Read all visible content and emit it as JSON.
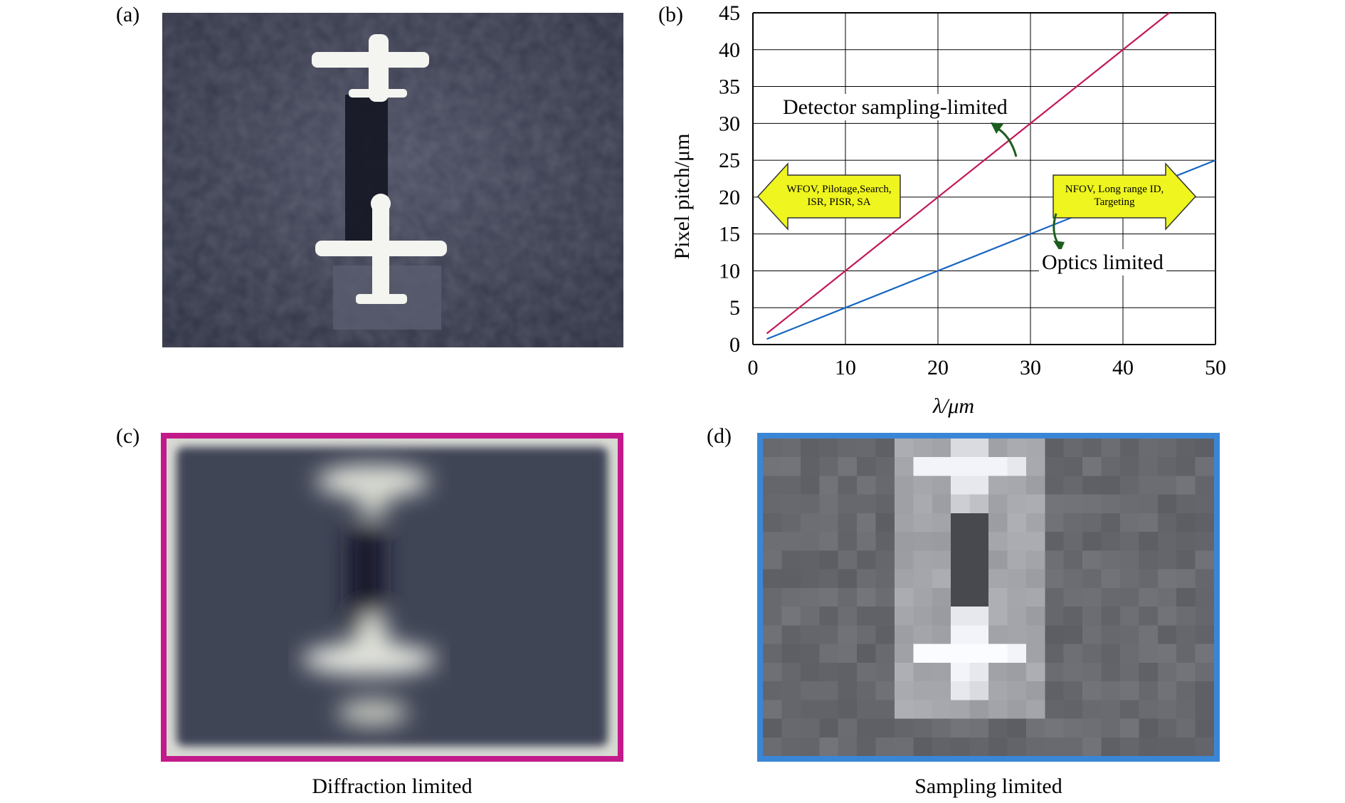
{
  "panels": {
    "a": {
      "label": "(a)"
    },
    "b": {
      "label": "(b)"
    },
    "c": {
      "label": "(c)",
      "caption": "Diffraction limited",
      "border_color": "#c21a8a"
    },
    "d": {
      "label": "(d)",
      "caption": "Sampling limited",
      "border_color": "#3a86d6"
    }
  },
  "chart_data": {
    "type": "line",
    "xlabel": "λ/μm",
    "ylabel": "Pixel pitch/μm",
    "xlim": [
      0,
      50
    ],
    "ylim": [
      0,
      45
    ],
    "xticks": [
      0,
      10,
      20,
      30,
      40,
      50
    ],
    "yticks": [
      0,
      5,
      10,
      15,
      20,
      25,
      30,
      35,
      40,
      45
    ],
    "grid": true,
    "series": [
      {
        "name": "Detector sampling-limited",
        "color": "#c2185b",
        "x": [
          1.5,
          45
        ],
        "y": [
          1.5,
          45
        ]
      },
      {
        "name": "Optics limited",
        "color": "#1565c0",
        "x": [
          1.5,
          50
        ],
        "y": [
          0.75,
          25
        ]
      }
    ],
    "annotations": [
      {
        "text_lines": [
          "WFOV, Pilotage,Search,",
          "ISR, PISR, SA"
        ],
        "direction": "left",
        "fill": "#eef51f"
      },
      {
        "text_lines": [
          "NFOV, Long range ID,",
          "Targeting"
        ],
        "direction": "right",
        "fill": "#eef51f"
      }
    ],
    "curved_arrow_color": "#1b5e20"
  }
}
